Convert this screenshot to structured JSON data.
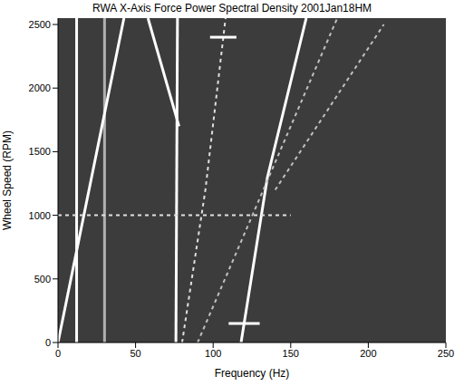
{
  "chart_data": {
    "type": "line",
    "title": "RWA X-Axis Force Power Spectral Density 2001Jan18HM",
    "xlabel": "Frequency (Hz)",
    "ylabel": "Wheel Speed (RPM)",
    "xlim": [
      0,
      250
    ],
    "ylim": [
      0,
      2550
    ],
    "xticks": [
      0,
      50,
      100,
      150,
      200,
      250
    ],
    "yticks": [
      0,
      500,
      1000,
      1500,
      2000,
      2500
    ],
    "grid": false,
    "series": [
      {
        "color": "#ffffff",
        "line_style": "solid",
        "x": [
          12,
          12
        ],
        "values": [
          0,
          2550
        ]
      },
      {
        "color": "#b0b0b0",
        "line_style": "solid",
        "x": [
          30,
          30
        ],
        "values": [
          0,
          2550
        ]
      },
      {
        "color": "#ffffff",
        "line_style": "solid",
        "x": [
          0,
          42.5
        ],
        "values": [
          0,
          2550
        ]
      },
      {
        "color": "#ffffff",
        "line_style": "solid",
        "x": [
          58,
          78
        ],
        "values": [
          2550,
          1700
        ]
      },
      {
        "color": "#ffffff",
        "line_style": "solid",
        "x": [
          76,
          77
        ],
        "values": [
          0,
          2550
        ]
      },
      {
        "color": "#e0e0e0",
        "line_style": "dashed",
        "x": [
          80,
          95,
          108
        ],
        "values": [
          0,
          1200,
          2550
        ]
      },
      {
        "color": "#ffffff",
        "line_style": "solid",
        "x": [
          98,
          115
        ],
        "values": [
          2400,
          2400
        ]
      },
      {
        "color": "#ffffff",
        "line_style": "solid",
        "x": [
          118,
          135,
          160
        ],
        "values": [
          0,
          1300,
          2550
        ]
      },
      {
        "color": "#ffffff",
        "line_style": "solid",
        "x": [
          110,
          130
        ],
        "values": [
          150,
          150
        ]
      },
      {
        "color": "#e0e0e0",
        "line_style": "dashed",
        "x": [
          0,
          150
        ],
        "values": [
          1000,
          1000
        ]
      },
      {
        "color": "#c0c0c0",
        "line_style": "dashed",
        "x": [
          90,
          180
        ],
        "values": [
          0,
          2550
        ]
      },
      {
        "color": "#c0c0c0",
        "line_style": "dashed",
        "x": [
          140,
          210
        ],
        "values": [
          1200,
          2500
        ]
      }
    ]
  }
}
